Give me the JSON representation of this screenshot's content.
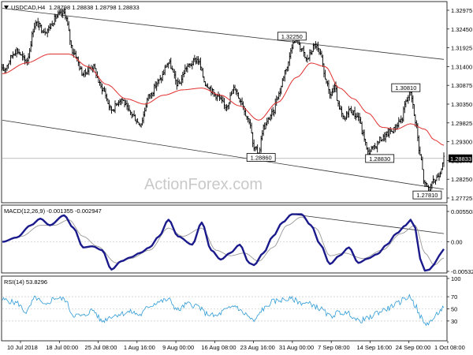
{
  "header": {
    "symbol_info": "USDCAD,H4",
    "ohlc": "1.28798 1.28838 1.28798 1.28833"
  },
  "watermark": "ActionForex.com",
  "colors": {
    "bar": "#000000",
    "ma": "#e03030",
    "macd": "#1a1a8c",
    "signal": "#999999",
    "rsi": "#2e9bd6",
    "channel": "#333333",
    "hline": "#999999",
    "background": "#ffffff"
  },
  "chart_data": [
    {
      "type": "line",
      "panel": "price",
      "title": "USDCAD,H4",
      "subtitle": "1.28798 1.28838 1.28798 1.28833",
      "x_tick_labels": [
        "10 Jul 2018",
        "18 Jul 00:00",
        "25 Jul 08:00",
        "1 Aug 16:00",
        "9 Aug 00:00",
        "16 Aug 08:00",
        "23 Aug 16:00",
        "31 Aug 00:00",
        "7 Sep 08:00",
        "14 Sep 16:00",
        "24 Sep 00:00",
        "1 Oct 08:00"
      ],
      "y_tick_labels": [
        "1.32975",
        "1.32450",
        "1.31925",
        "1.31400",
        "1.30875",
        "1.30350",
        "1.29825",
        "1.29300",
        "1.28775",
        "1.28250",
        "1.27725"
      ],
      "ylim": [
        1.27725,
        1.32975
      ],
      "last_price_label": "1.28833",
      "last_price": 1.28833,
      "grid": false,
      "series": [
        {
          "kind": "bars",
          "anchors": [
            [
              0,
              1.313
            ],
            [
              3,
              1.3185
            ],
            [
              5,
              1.3155
            ],
            [
              7,
              1.326
            ],
            [
              9,
              1.324
            ],
            [
              12,
              1.3285
            ],
            [
              13,
              1.329
            ],
            [
              15,
              1.318
            ],
            [
              17,
              1.312
            ],
            [
              19,
              1.314
            ],
            [
              21,
              1.308
            ],
            [
              23,
              1.302
            ],
            [
              25,
              1.305
            ],
            [
              27,
              1.301
            ],
            [
              29,
              1.298
            ],
            [
              31,
              1.306
            ],
            [
              33,
              1.31
            ],
            [
              35,
              1.315
            ],
            [
              37,
              1.309
            ],
            [
              39,
              1.314
            ],
            [
              41,
              1.316
            ],
            [
              43,
              1.309
            ],
            [
              45,
              1.306
            ],
            [
              47,
              1.303
            ],
            [
              49,
              1.308
            ],
            [
              50,
              1.305
            ],
            [
              52,
              1.299
            ],
            [
              53,
              1.291
            ],
            [
              54,
              1.29
            ],
            [
              55,
              1.297
            ],
            [
              57,
              1.301
            ],
            [
              58,
              1.306
            ],
            [
              60,
              1.314
            ],
            [
              61,
              1.32
            ],
            [
              62,
              1.322
            ],
            [
              63,
              1.319
            ],
            [
              64,
              1.316
            ],
            [
              66,
              1.32
            ],
            [
              67,
              1.317
            ],
            [
              68,
              1.311
            ],
            [
              69,
              1.306
            ],
            [
              70,
              1.308
            ],
            [
              71,
              1.302
            ],
            [
              72,
              1.299
            ],
            [
              73,
              1.302
            ],
            [
              75,
              1.3
            ],
            [
              76,
              1.295
            ],
            [
              77,
              1.29
            ],
            [
              78,
              1.291
            ],
            [
              80,
              1.294
            ],
            [
              82,
              1.296
            ],
            [
              84,
              1.299
            ],
            [
              85,
              1.304
            ],
            [
              86,
              1.307
            ],
            [
              87,
              1.299
            ],
            [
              88,
              1.289
            ],
            [
              89,
              1.281
            ],
            [
              90,
              1.28
            ],
            [
              91,
              1.282
            ],
            [
              92,
              1.284
            ],
            [
              93,
              1.2883
            ]
          ]
        },
        {
          "kind": "line",
          "name": "",
          "anchors": [
            [
              0,
              1.312
            ],
            [
              5,
              1.315
            ],
            [
              10,
              1.3175
            ],
            [
              14,
              1.3175
            ],
            [
              18,
              1.314
            ],
            [
              22,
              1.309
            ],
            [
              26,
              1.305
            ],
            [
              30,
              1.3035
            ],
            [
              34,
              1.306
            ],
            [
              38,
              1.3075
            ],
            [
              42,
              1.308
            ],
            [
              46,
              1.306
            ],
            [
              50,
              1.303
            ],
            [
              54,
              1.299
            ],
            [
              58,
              1.304
            ],
            [
              62,
              1.311
            ],
            [
              65,
              1.315
            ],
            [
              68,
              1.314
            ],
            [
              71,
              1.308
            ],
            [
              74,
              1.305
            ],
            [
              77,
              1.301
            ],
            [
              80,
              1.297
            ],
            [
              83,
              1.2965
            ],
            [
              86,
              1.298
            ],
            [
              89,
              1.2965
            ],
            [
              91,
              1.2935
            ],
            [
              93,
              1.292
            ]
          ]
        }
      ],
      "annotations": [
        {
          "text": "1.32250",
          "x": 61,
          "y": 1.3225
        },
        {
          "text": "1.28860",
          "x": 54.5,
          "y": 1.2886
        },
        {
          "text": "1.28830",
          "x": 79.5,
          "y": 1.2883
        },
        {
          "text": "1.30810",
          "x": 85,
          "y": 1.3081
        },
        {
          "text": "1.27810",
          "x": 89.5,
          "y": 1.2781
        }
      ],
      "channel_lines": [
        [
          [
            0,
            1.3303
          ],
          [
            93,
            1.316
          ]
        ],
        [
          [
            0,
            1.299
          ],
          [
            93,
            1.2797
          ]
        ]
      ],
      "horizontal_lines": [
        {
          "y": 1.28833
        }
      ]
    },
    {
      "type": "line",
      "panel": "macd",
      "title": "MACD(12,26,9) -0.001355 -0.002947",
      "y_tick_labels": [
        "0.005503",
        "0.00",
        "-0.005326"
      ],
      "ylim": [
        -0.005326,
        0.005503
      ],
      "grid": false,
      "series": [
        {
          "name": "",
          "role": "histogram",
          "anchors": [
            [
              0,
              0.0
            ],
            [
              3,
              0.0008
            ],
            [
              6,
              0.003
            ],
            [
              8,
              0.0042
            ],
            [
              10,
              0.003
            ],
            [
              13,
              0.0048
            ],
            [
              15,
              0.0025
            ],
            [
              17,
              -0.001
            ],
            [
              19,
              -0.0008
            ],
            [
              21,
              -0.0015
            ],
            [
              23,
              -0.005
            ],
            [
              25,
              -0.0035
            ],
            [
              27,
              -0.0028
            ],
            [
              29,
              -0.002
            ],
            [
              31,
              -0.001
            ],
            [
              33,
              0.001
            ],
            [
              35,
              0.004
            ],
            [
              37,
              0.001
            ],
            [
              40,
              -0.0005
            ],
            [
              42,
              0.0035
            ],
            [
              44,
              -0.0015
            ],
            [
              46,
              -0.0032
            ],
            [
              48,
              -0.002
            ],
            [
              50,
              -0.0005
            ],
            [
              52,
              -0.0038
            ],
            [
              53,
              -0.0042
            ],
            [
              55,
              -0.002
            ],
            [
              57,
              0.001
            ],
            [
              59,
              0.0035
            ],
            [
              61,
              0.005
            ],
            [
              63,
              0.005
            ],
            [
              65,
              0.003
            ],
            [
              67,
              -0.0005
            ],
            [
              69,
              -0.004
            ],
            [
              71,
              -0.0025
            ],
            [
              73,
              -0.001
            ],
            [
              75,
              -0.0038
            ],
            [
              77,
              -0.003
            ],
            [
              79,
              -0.0022
            ],
            [
              81,
              -0.0005
            ],
            [
              83,
              0.0015
            ],
            [
              85,
              0.003
            ],
            [
              86,
              0.004
            ],
            [
              87,
              0.0025
            ],
            [
              88,
              -0.003
            ],
            [
              89,
              -0.0052
            ],
            [
              90,
              -0.005
            ],
            [
              91,
              -0.004
            ],
            [
              92,
              -0.0025
            ],
            [
              93,
              -0.0013
            ]
          ]
        },
        {
          "name": "",
          "role": "signal",
          "anchors": [
            [
              0,
              0.0
            ],
            [
              4,
              0.001
            ],
            [
              8,
              0.003
            ],
            [
              11,
              0.003
            ],
            [
              14,
              0.004
            ],
            [
              17,
              0.001
            ],
            [
              20,
              -0.0008
            ],
            [
              24,
              -0.0038
            ],
            [
              27,
              -0.003
            ],
            [
              31,
              -0.0015
            ],
            [
              35,
              0.0025
            ],
            [
              38,
              0.001
            ],
            [
              42,
              0.0025
            ],
            [
              45,
              -0.0015
            ],
            [
              48,
              -0.0025
            ],
            [
              51,
              -0.002
            ],
            [
              54,
              -0.0035
            ],
            [
              57,
              -0.001
            ],
            [
              60,
              0.003
            ],
            [
              63,
              0.0045
            ],
            [
              66,
              0.0025
            ],
            [
              69,
              -0.0025
            ],
            [
              72,
              -0.002
            ],
            [
              76,
              -0.003
            ],
            [
              80,
              -0.0015
            ],
            [
              84,
              0.0015
            ],
            [
              87,
              0.003
            ],
            [
              89,
              -0.002
            ],
            [
              91,
              -0.0042
            ],
            [
              93,
              -0.0029
            ]
          ]
        }
      ],
      "trend_line": [
        [
          61,
          0.005
        ],
        [
          93,
          0.0015
        ]
      ]
    },
    {
      "type": "line",
      "panel": "rsi",
      "title": "RSI(14) 53.8296",
      "y_tick_labels": [
        "100",
        "70",
        "50",
        "30"
      ],
      "ylim": [
        0,
        100
      ],
      "reference_levels": [
        70,
        50,
        30
      ],
      "grid": false,
      "series": [
        {
          "name": "",
          "anchors": [
            [
              0,
              65
            ],
            [
              3,
              60
            ],
            [
              5,
              45
            ],
            [
              7,
              68
            ],
            [
              9,
              55
            ],
            [
              11,
              68
            ],
            [
              13,
              66
            ],
            [
              15,
              40
            ],
            [
              17,
              38
            ],
            [
              19,
              48
            ],
            [
              21,
              30
            ],
            [
              23,
              38
            ],
            [
              25,
              42
            ],
            [
              27,
              45
            ],
            [
              29,
              40
            ],
            [
              31,
              55
            ],
            [
              33,
              62
            ],
            [
              35,
              65
            ],
            [
              37,
              48
            ],
            [
              39,
              58
            ],
            [
              41,
              55
            ],
            [
              43,
              42
            ],
            [
              45,
              38
            ],
            [
              47,
              48
            ],
            [
              49,
              55
            ],
            [
              51,
              42
            ],
            [
              53,
              30
            ],
            [
              55,
              50
            ],
            [
              57,
              62
            ],
            [
              59,
              65
            ],
            [
              61,
              66
            ],
            [
              63,
              60
            ],
            [
              65,
              58
            ],
            [
              67,
              50
            ],
            [
              69,
              38
            ],
            [
              71,
              44
            ],
            [
              73,
              42
            ],
            [
              75,
              30
            ],
            [
              77,
              34
            ],
            [
              79,
              44
            ],
            [
              81,
              50
            ],
            [
              83,
              58
            ],
            [
              85,
              68
            ],
            [
              86,
              70
            ],
            [
              87,
              55
            ],
            [
              88,
              38
            ],
            [
              89,
              25
            ],
            [
              90,
              28
            ],
            [
              91,
              35
            ],
            [
              92,
              45
            ],
            [
              93,
              54
            ]
          ]
        }
      ]
    }
  ]
}
